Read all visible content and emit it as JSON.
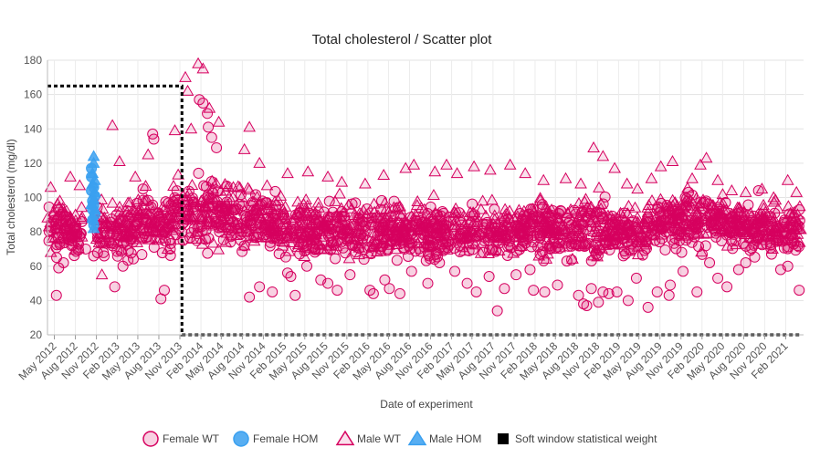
{
  "chart_data": {
    "type": "scatter",
    "title": "Total cholesterol / Scatter plot",
    "xlabel": "Date of experiment",
    "ylabel": "Total cholesterol (mg/dl)",
    "x_tick_labels": [
      "May 2012",
      "Aug 2012",
      "Nov 2012",
      "Feb 2013",
      "May 2013",
      "Aug 2013",
      "Nov 2013",
      "Feb 2014",
      "May 2014",
      "Aug 2014",
      "Nov 2014",
      "Feb 2015",
      "May 2015",
      "Aug 2015",
      "Nov 2015",
      "Feb 2016",
      "May 2016",
      "Aug 2016",
      "Nov 2016",
      "Feb 2017",
      "May 2017",
      "Aug 2017",
      "Nov 2017",
      "Feb 2018",
      "May 2018",
      "Aug 2018",
      "Nov 2018",
      "Feb 2019",
      "May 2019",
      "Aug 2019",
      "Nov 2019",
      "Feb 2020",
      "May 2020",
      "Aug 2020",
      "Nov 2020",
      "Feb 2021"
    ],
    "x_range": [
      "2012-04-01",
      "2021-04-20"
    ],
    "ylim": [
      20,
      180
    ],
    "y_ticks": [
      20,
      40,
      60,
      80,
      100,
      120,
      140,
      160,
      180
    ],
    "grid": true,
    "legend_position": "bottom",
    "series": [
      {
        "name": "Female WT",
        "marker": "circle",
        "color": "#d6005f",
        "fill": "rgba(214,0,95,0.18)",
        "points": [
          [
            "2012-05-10",
            43
          ],
          [
            "2012-05-20",
            59
          ],
          [
            "2012-06-10",
            62
          ],
          [
            "2012-07-15",
            72
          ],
          [
            "2012-09-15",
            70
          ],
          [
            "2012-10-20",
            66
          ],
          [
            "2012-12-05",
            66
          ],
          [
            "2013-01-20",
            48
          ],
          [
            "2013-02-25",
            60
          ],
          [
            "2013-04-10",
            74
          ],
          [
            "2013-05-20",
            77
          ],
          [
            "2013-07-05",
            137
          ],
          [
            "2013-07-10",
            134
          ],
          [
            "2013-08-10",
            41
          ],
          [
            "2013-08-25",
            46
          ],
          [
            "2013-09-20",
            70
          ],
          [
            "2013-11-15",
            75
          ],
          [
            "2014-01-25",
            157
          ],
          [
            "2014-02-10",
            155
          ],
          [
            "2014-03-01",
            149
          ],
          [
            "2014-03-05",
            141
          ],
          [
            "2014-03-20",
            135
          ],
          [
            "2014-04-10",
            129
          ],
          [
            "2014-05-20",
            92
          ],
          [
            "2014-07-15",
            82
          ],
          [
            "2014-09-01",
            42
          ],
          [
            "2014-10-15",
            48
          ],
          [
            "2014-12-10",
            45
          ],
          [
            "2015-02-15",
            56
          ],
          [
            "2015-03-01",
            54
          ],
          [
            "2015-03-20",
            43
          ],
          [
            "2015-05-10",
            60
          ],
          [
            "2015-07-10",
            52
          ],
          [
            "2015-08-10",
            50
          ],
          [
            "2015-09-20",
            46
          ],
          [
            "2015-11-15",
            55
          ],
          [
            "2016-02-10",
            46
          ],
          [
            "2016-02-25",
            44
          ],
          [
            "2016-04-15",
            52
          ],
          [
            "2016-05-05",
            47
          ],
          [
            "2016-06-20",
            44
          ],
          [
            "2016-08-10",
            57
          ],
          [
            "2016-10-20",
            50
          ],
          [
            "2016-12-10",
            62
          ],
          [
            "2017-02-15",
            57
          ],
          [
            "2017-04-10",
            50
          ],
          [
            "2017-05-20",
            45
          ],
          [
            "2017-07-15",
            54
          ],
          [
            "2017-08-20",
            34
          ],
          [
            "2017-09-20",
            47
          ],
          [
            "2017-11-10",
            55
          ],
          [
            "2018-01-10",
            58
          ],
          [
            "2018-01-25",
            46
          ],
          [
            "2018-03-15",
            45
          ],
          [
            "2018-05-10",
            49
          ],
          [
            "2018-06-20",
            63
          ],
          [
            "2018-08-10",
            43
          ],
          [
            "2018-09-01",
            38
          ],
          [
            "2018-09-15",
            37
          ],
          [
            "2018-10-05",
            47
          ],
          [
            "2018-11-05",
            39
          ],
          [
            "2018-11-25",
            45
          ],
          [
            "2018-12-20",
            44
          ],
          [
            "2019-01-25",
            45
          ],
          [
            "2019-03-15",
            40
          ],
          [
            "2019-04-20",
            53
          ],
          [
            "2019-06-10",
            36
          ],
          [
            "2019-07-20",
            45
          ],
          [
            "2019-09-10",
            43
          ],
          [
            "2019-09-15",
            49
          ],
          [
            "2019-11-10",
            57
          ],
          [
            "2020-01-10",
            45
          ],
          [
            "2020-03-05",
            62
          ],
          [
            "2020-04-10",
            53
          ],
          [
            "2020-05-20",
            48
          ],
          [
            "2020-07-10",
            58
          ],
          [
            "2020-08-10",
            62
          ],
          [
            "2020-10-05",
            104
          ],
          [
            "2020-12-01",
            67
          ],
          [
            "2021-01-10",
            58
          ],
          [
            "2021-02-10",
            60
          ],
          [
            "2021-03-15",
            86
          ],
          [
            "2021-03-25",
            72
          ],
          [
            "2021-04-01",
            46
          ],
          [
            "2014-06-10",
            74
          ],
          [
            "2015-06-15",
            70
          ],
          [
            "2016-07-10",
            70
          ],
          [
            "2017-03-10",
            72
          ],
          [
            "2018-04-10",
            70
          ],
          [
            "2019-08-10",
            76
          ]
        ]
      },
      {
        "name": "Female HOM",
        "marker": "circle",
        "color": "#3aa0f0",
        "fill": "rgba(58,160,240,0.85)",
        "points": [
          [
            "2012-10-10",
            117
          ],
          [
            "2012-10-10",
            112
          ],
          [
            "2012-10-10",
            104
          ],
          [
            "2012-10-15",
            98
          ],
          [
            "2012-10-15",
            93
          ],
          [
            "2012-10-15",
            87
          ],
          [
            "2012-10-20",
            84
          ],
          [
            "2012-10-20",
            95
          ],
          [
            "2012-10-20",
            106
          ],
          [
            "2012-10-25",
            90
          ],
          [
            "2012-10-25",
            101
          ]
        ]
      },
      {
        "name": "Male WT",
        "marker": "triangle",
        "color": "#d6005f",
        "fill": "rgba(214,0,95,0.12)",
        "points": [
          [
            "2012-04-15",
            106
          ],
          [
            "2012-05-25",
            98
          ],
          [
            "2012-07-10",
            112
          ],
          [
            "2012-08-20",
            107
          ],
          [
            "2012-11-25",
            55
          ],
          [
            "2013-01-10",
            142
          ],
          [
            "2013-02-10",
            121
          ],
          [
            "2013-04-20",
            112
          ],
          [
            "2013-06-15",
            125
          ],
          [
            "2013-10-10",
            139
          ],
          [
            "2013-11-25",
            170
          ],
          [
            "2013-12-05",
            162
          ],
          [
            "2013-12-20",
            140
          ],
          [
            "2014-01-20",
            178
          ],
          [
            "2014-02-10",
            175
          ],
          [
            "2014-03-10",
            152
          ],
          [
            "2014-04-20",
            144
          ],
          [
            "2014-08-10",
            128
          ],
          [
            "2014-09-01",
            141
          ],
          [
            "2014-10-15",
            120
          ],
          [
            "2015-02-15",
            114
          ],
          [
            "2015-05-15",
            115
          ],
          [
            "2015-08-10",
            112
          ],
          [
            "2015-10-10",
            109
          ],
          [
            "2016-01-20",
            108
          ],
          [
            "2016-04-10",
            113
          ],
          [
            "2016-07-15",
            117
          ],
          [
            "2016-08-20",
            119
          ],
          [
            "2016-11-20",
            115
          ],
          [
            "2017-01-10",
            119
          ],
          [
            "2017-02-25",
            114
          ],
          [
            "2017-05-10",
            118
          ],
          [
            "2017-07-20",
            116
          ],
          [
            "2017-10-15",
            119
          ],
          [
            "2017-12-20",
            114
          ],
          [
            "2018-03-10",
            110
          ],
          [
            "2018-06-15",
            111
          ],
          [
            "2018-08-20",
            108
          ],
          [
            "2018-10-15",
            129
          ],
          [
            "2018-11-25",
            124
          ],
          [
            "2019-01-15",
            117
          ],
          [
            "2019-03-10",
            108
          ],
          [
            "2019-04-25",
            105
          ],
          [
            "2019-06-25",
            111
          ],
          [
            "2019-08-05",
            118
          ],
          [
            "2019-09-25",
            121
          ],
          [
            "2019-12-20",
            111
          ],
          [
            "2020-01-25",
            119
          ],
          [
            "2020-02-20",
            123
          ],
          [
            "2020-04-10",
            110
          ],
          [
            "2020-06-10",
            104
          ],
          [
            "2020-08-10",
            103
          ],
          [
            "2020-10-20",
            105
          ],
          [
            "2020-12-10",
            100
          ],
          [
            "2021-02-10",
            110
          ],
          [
            "2021-03-20",
            103
          ],
          [
            "2021-03-25",
            90
          ]
        ]
      },
      {
        "name": "Male HOM",
        "marker": "triangle",
        "color": "#3aa0f0",
        "fill": "rgba(58,160,240,0.85)",
        "points": [
          [
            "2012-10-20",
            124
          ],
          [
            "2012-10-20",
            120
          ],
          [
            "2012-10-15",
            114
          ],
          [
            "2012-10-15",
            108
          ],
          [
            "2012-10-25",
            103
          ],
          [
            "2012-10-20",
            99
          ],
          [
            "2012-10-25",
            93
          ],
          [
            "2012-10-15",
            88
          ],
          [
            "2012-10-20",
            82
          ],
          [
            "2012-10-25",
            110
          ],
          [
            "2012-10-10",
            96
          ]
        ]
      }
    ],
    "density_bands": [
      {
        "start": "2012-04-01",
        "end": "2012-09-01",
        "low": 60,
        "high": 100
      },
      {
        "start": "2012-11-01",
        "end": "2013-04-01",
        "low": 58,
        "high": 102
      },
      {
        "start": "2013-04-01",
        "end": "2013-10-01",
        "low": 60,
        "high": 108
      },
      {
        "start": "2013-10-01",
        "end": "2014-06-01",
        "low": 62,
        "high": 118
      },
      {
        "start": "2014-06-01",
        "end": "2015-01-01",
        "low": 60,
        "high": 110
      },
      {
        "start": "2015-01-01",
        "end": "2016-06-01",
        "low": 58,
        "high": 102
      },
      {
        "start": "2016-06-01",
        "end": "2018-01-01",
        "low": 58,
        "high": 100
      },
      {
        "start": "2018-01-01",
        "end": "2019-01-01",
        "low": 56,
        "high": 104
      },
      {
        "start": "2019-01-01",
        "end": "2019-06-01",
        "low": 60,
        "high": 95
      },
      {
        "start": "2019-06-01",
        "end": "2020-06-01",
        "low": 62,
        "high": 108
      },
      {
        "start": "2020-06-01",
        "end": "2021-04-10",
        "low": 62,
        "high": 100
      }
    ],
    "soft_window": {
      "name": "Soft window statistical weight",
      "color": "#000000",
      "steps": [
        [
          "2012-04-01",
          165
        ],
        [
          "2013-11-10",
          165
        ],
        [
          "2013-11-10",
          20
        ],
        [
          "2021-04-10",
          20
        ]
      ]
    }
  }
}
